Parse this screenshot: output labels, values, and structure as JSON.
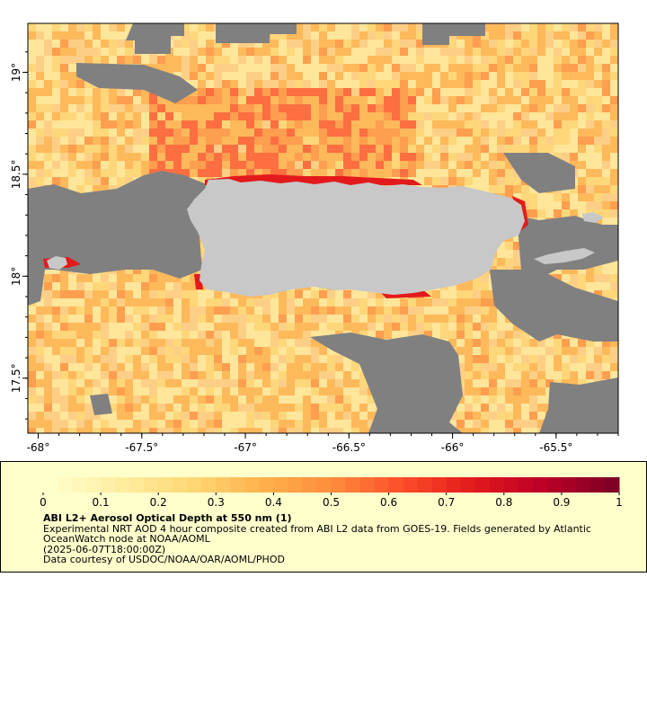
{
  "map": {
    "x_ticks": [
      {
        "value": -68,
        "label": "-68°"
      },
      {
        "value": -67.5,
        "label": "-67.5°"
      },
      {
        "value": -67,
        "label": "-67°"
      },
      {
        "value": -66.5,
        "label": "-66.5°"
      },
      {
        "value": -66,
        "label": "-66°"
      },
      {
        "value": -65.5,
        "label": "-65.5°"
      }
    ],
    "y_ticks": [
      {
        "value": 19,
        "label": "19°"
      },
      {
        "value": 18.5,
        "label": "18.5°"
      },
      {
        "value": 18,
        "label": "18°"
      },
      {
        "value": 17.5,
        "label": "17.5°"
      }
    ],
    "lon_range": [
      -68.05,
      -65.2
    ],
    "lat_range": [
      17.23,
      19.24
    ],
    "colors": {
      "land": "#c8c8c8",
      "no_data": "#808080",
      "frame": "#000000"
    }
  },
  "legend": {
    "colorbar_labels": [
      "0",
      "0.1",
      "0.2",
      "0.3",
      "0.4",
      "0.5",
      "0.6",
      "0.7",
      "0.8",
      "0.9",
      "1"
    ],
    "colorbar_range": [
      0,
      1
    ],
    "colorbar_colors": [
      "#ffffcc",
      "#ffeda0",
      "#fed976",
      "#feb24c",
      "#fd8d3c",
      "#fc4e2a",
      "#e31a1c",
      "#bd0026",
      "#800026"
    ],
    "title": "ABI L2+ Aerosol Optical Depth at 550 nm (1)",
    "line1": "Experimental NRT AOD 4 hour composite created from ABI L2 data from GOES-19. Fields generated by Atlantic OceanWatch node at NOAA/AOML",
    "line2": "(2025-06-07T18:00:00Z)",
    "line3": "Data courtesy of USDOC/NOAA/OAR/AOML/PHOD"
  }
}
